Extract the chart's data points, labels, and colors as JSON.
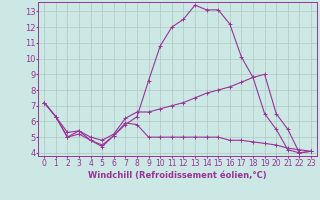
{
  "background_color": "#cce8e4",
  "grid_color": "#b0c8c4",
  "line_color": "#993399",
  "xlabel": "Windchill (Refroidissement éolien,°C)",
  "xlabel_fontsize": 6.0,
  "ytick_fontsize": 6.0,
  "xtick_fontsize": 5.5,
  "xlim": [
    -0.5,
    23.5
  ],
  "ylim": [
    3.8,
    13.6
  ],
  "yticks": [
    4,
    5,
    6,
    7,
    8,
    9,
    10,
    11,
    12,
    13
  ],
  "xticks": [
    0,
    1,
    2,
    3,
    4,
    5,
    6,
    7,
    8,
    9,
    10,
    11,
    12,
    13,
    14,
    15,
    16,
    17,
    18,
    19,
    20,
    21,
    22,
    23
  ],
  "line1_x": [
    0,
    1,
    2,
    3,
    4,
    5,
    6,
    7,
    8,
    9,
    10,
    11,
    12,
    13,
    14,
    15,
    16,
    17,
    18,
    19,
    20,
    21,
    22,
    23
  ],
  "line1_y": [
    7.2,
    6.3,
    5.0,
    5.4,
    4.8,
    4.4,
    5.1,
    5.8,
    6.3,
    8.6,
    10.8,
    12.0,
    12.5,
    13.4,
    13.1,
    13.1,
    12.2,
    10.1,
    8.8,
    6.5,
    5.5,
    4.2,
    4.0,
    4.1
  ],
  "line2_x": [
    0,
    1,
    2,
    3,
    4,
    5,
    6,
    7,
    8,
    9,
    10,
    11,
    12,
    13,
    14,
    15,
    16,
    17,
    18,
    19,
    20,
    21,
    22,
    23
  ],
  "line2_y": [
    7.2,
    6.3,
    5.3,
    5.4,
    5.0,
    4.8,
    5.2,
    6.2,
    6.6,
    6.6,
    6.8,
    7.0,
    7.2,
    7.5,
    7.8,
    8.0,
    8.2,
    8.5,
    8.8,
    9.0,
    6.5,
    5.5,
    4.0,
    4.1
  ],
  "line3_x": [
    0,
    1,
    2,
    3,
    4,
    5,
    6,
    7,
    8,
    9,
    10,
    11,
    12,
    13,
    14,
    15,
    16,
    17,
    18,
    19,
    20,
    21,
    22,
    23
  ],
  "line3_y": [
    7.2,
    6.3,
    5.0,
    5.2,
    4.8,
    4.5,
    5.1,
    5.9,
    5.8,
    5.0,
    5.0,
    5.0,
    5.0,
    5.0,
    5.0,
    5.0,
    4.8,
    4.8,
    4.7,
    4.6,
    4.5,
    4.3,
    4.2,
    4.1
  ]
}
